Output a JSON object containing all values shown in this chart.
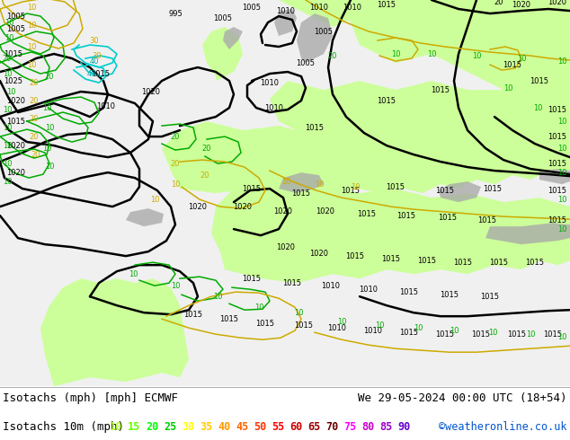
{
  "title_line1": "Isotachs (mph) [mph] ECMWF",
  "title_line2": "We 29-05-2024 00:00 UTC (18+54)",
  "legend_label": "Isotachs 10m (mph)",
  "copyright": "©weatheronline.co.uk",
  "legend_values": [
    10,
    15,
    20,
    25,
    30,
    35,
    40,
    45,
    50,
    55,
    60,
    65,
    70,
    75,
    80,
    85,
    90
  ],
  "legend_colors": [
    "#adff2f",
    "#66ff00",
    "#00ff00",
    "#00cc00",
    "#ffff00",
    "#ffcc00",
    "#ff9900",
    "#ff6600",
    "#ff3300",
    "#ff0000",
    "#cc0000",
    "#990000",
    "#660000",
    "#ff00ff",
    "#cc00cc",
    "#9900cc",
    "#6600cc"
  ],
  "bg_color_left": "#e8e8e8",
  "bg_color_right": "#ccff99",
  "bottom_bar_color": "#ffffff",
  "fig_width": 6.34,
  "fig_height": 4.9,
  "dpi": 100
}
